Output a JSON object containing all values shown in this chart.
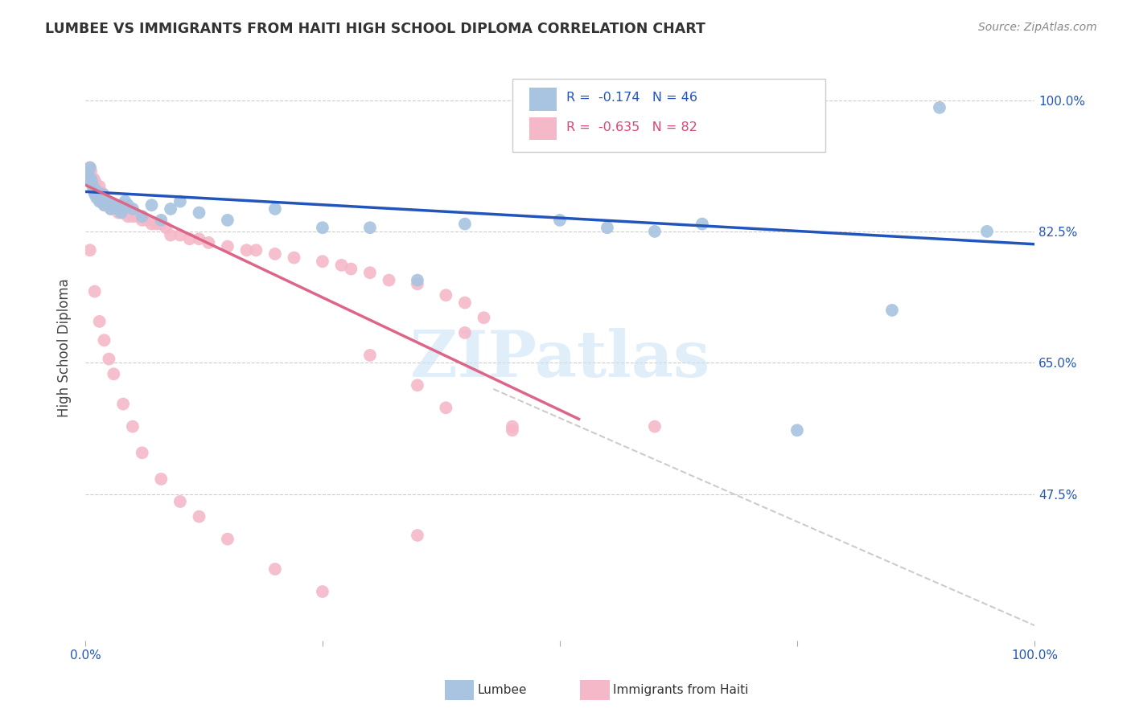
{
  "title": "LUMBEE VS IMMIGRANTS FROM HAITI HIGH SCHOOL DIPLOMA CORRELATION CHART",
  "source": "Source: ZipAtlas.com",
  "ylabel": "High School Diploma",
  "right_yticks": [
    0.475,
    0.65,
    0.825,
    1.0
  ],
  "right_yticklabels": [
    "47.5%",
    "65.0%",
    "82.5%",
    "100.0%"
  ],
  "lumbee_color": "#a8c4e0",
  "haiti_color": "#f4b8c8",
  "line_blue": "#2255bb",
  "line_pink": "#dd6688",
  "lumbee_x": [
    0.003,
    0.005,
    0.006,
    0.007,
    0.008,
    0.009,
    0.01,
    0.011,
    0.012,
    0.013,
    0.014,
    0.015,
    0.016,
    0.018,
    0.02,
    0.022,
    0.025,
    0.027,
    0.03,
    0.032,
    0.035,
    0.038,
    0.04,
    0.042,
    0.045,
    0.05,
    0.06,
    0.07,
    0.08,
    0.09,
    0.1,
    0.12,
    0.15,
    0.2,
    0.25,
    0.3,
    0.35,
    0.4,
    0.5,
    0.55,
    0.6,
    0.65,
    0.75,
    0.85,
    0.9,
    0.95
  ],
  "lumbee_y": [
    0.9,
    0.91,
    0.895,
    0.89,
    0.885,
    0.88,
    0.875,
    0.88,
    0.87,
    0.875,
    0.87,
    0.865,
    0.87,
    0.875,
    0.86,
    0.865,
    0.86,
    0.855,
    0.86,
    0.86,
    0.855,
    0.85,
    0.86,
    0.865,
    0.86,
    0.855,
    0.845,
    0.86,
    0.84,
    0.855,
    0.865,
    0.85,
    0.84,
    0.855,
    0.83,
    0.83,
    0.76,
    0.835,
    0.84,
    0.83,
    0.825,
    0.835,
    0.56,
    0.72,
    0.99,
    0.825
  ],
  "haiti_x": [
    0.003,
    0.004,
    0.005,
    0.006,
    0.007,
    0.008,
    0.009,
    0.01,
    0.011,
    0.012,
    0.013,
    0.014,
    0.015,
    0.016,
    0.017,
    0.018,
    0.019,
    0.02,
    0.021,
    0.022,
    0.023,
    0.025,
    0.027,
    0.028,
    0.03,
    0.032,
    0.034,
    0.035,
    0.037,
    0.04,
    0.042,
    0.045,
    0.05,
    0.055,
    0.06,
    0.065,
    0.07,
    0.075,
    0.08,
    0.085,
    0.09,
    0.1,
    0.11,
    0.12,
    0.13,
    0.15,
    0.17,
    0.18,
    0.2,
    0.22,
    0.25,
    0.27,
    0.28,
    0.3,
    0.32,
    0.35,
    0.38,
    0.4,
    0.42,
    0.45,
    0.005,
    0.01,
    0.015,
    0.02,
    0.025,
    0.03,
    0.04,
    0.05,
    0.06,
    0.08,
    0.1,
    0.12,
    0.15,
    0.2,
    0.25,
    0.3,
    0.35,
    0.38,
    0.4,
    0.45,
    0.6,
    0.35
  ],
  "haiti_y": [
    0.895,
    0.905,
    0.91,
    0.905,
    0.895,
    0.89,
    0.895,
    0.885,
    0.89,
    0.875,
    0.88,
    0.875,
    0.885,
    0.875,
    0.865,
    0.87,
    0.875,
    0.865,
    0.86,
    0.865,
    0.865,
    0.86,
    0.855,
    0.86,
    0.86,
    0.855,
    0.855,
    0.85,
    0.855,
    0.85,
    0.855,
    0.845,
    0.845,
    0.845,
    0.84,
    0.84,
    0.835,
    0.835,
    0.835,
    0.83,
    0.82,
    0.82,
    0.815,
    0.815,
    0.81,
    0.805,
    0.8,
    0.8,
    0.795,
    0.79,
    0.785,
    0.78,
    0.775,
    0.77,
    0.76,
    0.755,
    0.74,
    0.73,
    0.71,
    0.565,
    0.8,
    0.745,
    0.705,
    0.68,
    0.655,
    0.635,
    0.595,
    0.565,
    0.53,
    0.495,
    0.465,
    0.445,
    0.415,
    0.375,
    0.345,
    0.66,
    0.62,
    0.59,
    0.69,
    0.56,
    0.565,
    0.42
  ],
  "blue_line_x": [
    0.0,
    1.0
  ],
  "blue_line_y": [
    0.878,
    0.808
  ],
  "pink_line_x": [
    0.0,
    0.52
  ],
  "pink_line_y": [
    0.887,
    0.575
  ],
  "dash_line_x": [
    0.43,
    1.0
  ],
  "dash_line_y": [
    0.615,
    0.3
  ],
  "xlim": [
    0.0,
    1.0
  ],
  "ylim": [
    0.28,
    1.06
  ],
  "watermark": "ZIPatlas",
  "background_color": "#ffffff"
}
